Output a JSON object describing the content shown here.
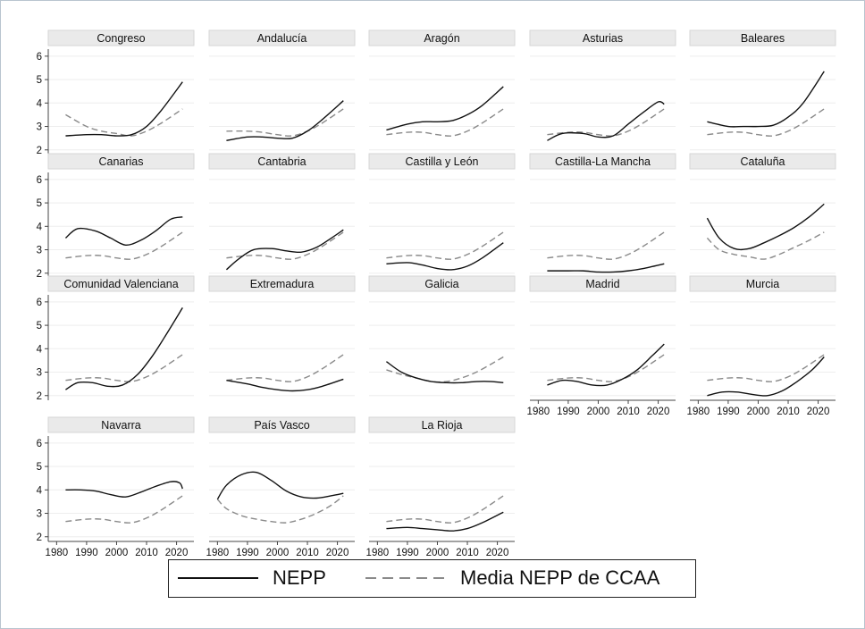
{
  "chart_data": {
    "type": "line",
    "xlim": [
      1979,
      2024
    ],
    "ylim": [
      1.8,
      6.3
    ],
    "x_ticks": [
      "1980",
      "1990",
      "2000",
      "2010",
      "2020"
    ],
    "y_ticks": [
      "2",
      "3",
      "4",
      "5",
      "6"
    ],
    "legend": {
      "position": "bottom",
      "entries": [
        "NEPP",
        "Media NEPP de CCAA"
      ]
    },
    "series_styles": {
      "nepp": {
        "color": "#111111",
        "dash": "solid"
      },
      "media": {
        "color": "#8a8a8a",
        "dash": "dashed"
      }
    },
    "shared_series": {
      "name": "Media NEPP de CCAA",
      "x": [
        1983,
        1990,
        1995,
        2000,
        2005,
        2010,
        2015,
        2022
      ],
      "y": [
        2.65,
        2.75,
        2.75,
        2.65,
        2.6,
        2.8,
        3.15,
        3.75
      ]
    },
    "panels": [
      {
        "title": "Congreso",
        "x": [
          1983,
          1990,
          1995,
          2000,
          2005,
          2010,
          2015,
          2022
        ],
        "y": [
          2.6,
          2.65,
          2.65,
          2.6,
          2.65,
          3.0,
          3.7,
          4.9
        ],
        "media_y": [
          3.5,
          3.0,
          2.8,
          2.7,
          2.6,
          2.8,
          3.15,
          3.75
        ]
      },
      {
        "title": "Andalucía",
        "x": [
          1983,
          1990,
          1995,
          2000,
          2005,
          2010,
          2015,
          2022
        ],
        "y": [
          2.4,
          2.55,
          2.55,
          2.5,
          2.5,
          2.8,
          3.3,
          4.1
        ],
        "media_y": [
          2.8,
          2.8,
          2.75,
          2.65,
          2.6,
          2.8,
          3.15,
          3.75
        ]
      },
      {
        "title": "Aragón",
        "x": [
          1983,
          1990,
          1995,
          2000,
          2005,
          2010,
          2015,
          2022
        ],
        "y": [
          2.85,
          3.1,
          3.2,
          3.2,
          3.25,
          3.5,
          3.9,
          4.7
        ]
      },
      {
        "title": "Asturias",
        "x": [
          1983,
          1988,
          1995,
          2000,
          2005,
          2010,
          2015,
          2020,
          2022
        ],
        "y": [
          2.4,
          2.7,
          2.7,
          2.55,
          2.6,
          3.1,
          3.6,
          4.05,
          3.95
        ]
      },
      {
        "title": "Baleares",
        "x": [
          1983,
          1990,
          1995,
          2000,
          2005,
          2010,
          2015,
          2022
        ],
        "y": [
          3.2,
          3.0,
          3.0,
          3.0,
          3.05,
          3.4,
          4.0,
          5.35
        ]
      },
      {
        "title": "Canarias",
        "x": [
          1983,
          1987,
          1993,
          1998,
          2003,
          2008,
          2013,
          2018,
          2022
        ],
        "y": [
          3.5,
          3.9,
          3.8,
          3.5,
          3.2,
          3.4,
          3.8,
          4.3,
          4.4
        ]
      },
      {
        "title": "Cantabria",
        "x": [
          1983,
          1987,
          1992,
          1998,
          2003,
          2008,
          2013,
          2018,
          2022
        ],
        "y": [
          2.15,
          2.6,
          3.0,
          3.05,
          2.95,
          2.9,
          3.1,
          3.5,
          3.85
        ]
      },
      {
        "title": "Castilla y León",
        "x": [
          1983,
          1990,
          1995,
          2000,
          2005,
          2010,
          2015,
          2022
        ],
        "y": [
          2.4,
          2.45,
          2.35,
          2.2,
          2.15,
          2.3,
          2.65,
          3.3
        ]
      },
      {
        "title": "Castilla-La Mancha",
        "x": [
          1983,
          1990,
          1995,
          2000,
          2005,
          2010,
          2015,
          2022
        ],
        "y": [
          2.1,
          2.1,
          2.1,
          2.05,
          2.05,
          2.1,
          2.2,
          2.4
        ]
      },
      {
        "title": "Cataluña",
        "x": [
          1983,
          1987,
          1992,
          1997,
          2002,
          2007,
          2012,
          2017,
          2022
        ],
        "y": [
          4.35,
          3.5,
          3.05,
          3.05,
          3.3,
          3.6,
          3.95,
          4.4,
          4.95
        ],
        "media_y": [
          3.5,
          3.0,
          2.8,
          2.7,
          2.6,
          2.8,
          3.1,
          3.4,
          3.75
        ]
      },
      {
        "title": "Comunidad Valenciana",
        "x": [
          1983,
          1987,
          1992,
          1997,
          2002,
          2007,
          2012,
          2017,
          2022
        ],
        "y": [
          2.25,
          2.55,
          2.55,
          2.4,
          2.45,
          2.9,
          3.7,
          4.7,
          5.75
        ]
      },
      {
        "title": "Extremadura",
        "x": [
          1983,
          1990,
          1995,
          2000,
          2005,
          2010,
          2015,
          2022
        ],
        "y": [
          2.65,
          2.5,
          2.35,
          2.25,
          2.2,
          2.25,
          2.4,
          2.7
        ]
      },
      {
        "title": "Galicia",
        "x": [
          1983,
          1988,
          1993,
          1998,
          2003,
          2008,
          2013,
          2018,
          2022
        ],
        "y": [
          3.45,
          3.0,
          2.75,
          2.6,
          2.55,
          2.55,
          2.6,
          2.6,
          2.55
        ],
        "media_y": [
          3.1,
          2.9,
          2.75,
          2.6,
          2.6,
          2.75,
          3.0,
          3.35,
          3.65
        ]
      },
      {
        "title": "Madrid",
        "x": [
          1983,
          1988,
          1993,
          1998,
          2003,
          2008,
          2013,
          2018,
          2022
        ],
        "y": [
          2.45,
          2.65,
          2.6,
          2.45,
          2.45,
          2.7,
          3.1,
          3.7,
          4.2
        ]
      },
      {
        "title": "Murcia",
        "x": [
          1983,
          1988,
          1993,
          1998,
          2003,
          2008,
          2013,
          2018,
          2022
        ],
        "y": [
          2.0,
          2.15,
          2.15,
          2.05,
          2.0,
          2.2,
          2.6,
          3.1,
          3.65
        ]
      },
      {
        "title": "Navarra",
        "x": [
          1983,
          1988,
          1993,
          1998,
          2003,
          2008,
          2013,
          2018,
          2021,
          2022
        ],
        "y": [
          4.0,
          4.0,
          3.95,
          3.8,
          3.7,
          3.9,
          4.15,
          4.35,
          4.3,
          4.05
        ]
      },
      {
        "title": "País Vasco",
        "x": [
          1980,
          1983,
          1988,
          1993,
          1998,
          2003,
          2008,
          2013,
          2018,
          2022
        ],
        "y": [
          3.6,
          4.2,
          4.65,
          4.75,
          4.4,
          3.95,
          3.7,
          3.65,
          3.75,
          3.85
        ],
        "media_y": [
          3.6,
          3.2,
          2.9,
          2.75,
          2.65,
          2.6,
          2.75,
          3.0,
          3.35,
          3.75
        ]
      },
      {
        "title": "La Rioja",
        "x": [
          1983,
          1990,
          1995,
          2000,
          2005,
          2010,
          2015,
          2022
        ],
        "y": [
          2.35,
          2.4,
          2.35,
          2.3,
          2.25,
          2.35,
          2.6,
          3.05
        ]
      }
    ]
  }
}
